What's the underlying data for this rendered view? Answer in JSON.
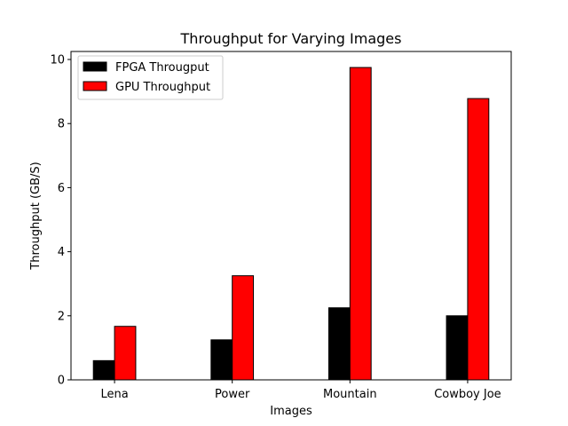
{
  "chart_data": {
    "type": "bar",
    "title": "Throughput for Varying Images",
    "xlabel": "Images",
    "ylabel": "Throughput (GB/S)",
    "categories": [
      "Lena",
      "Power",
      "Mountain",
      "Cowboy Joe"
    ],
    "series": [
      {
        "name": "FPGA Througput",
        "color": "#000000",
        "values": [
          0.6,
          1.25,
          2.25,
          2.0
        ]
      },
      {
        "name": "GPU Throughput",
        "color": "#ff0000",
        "values": [
          1.67,
          3.25,
          9.75,
          8.78
        ]
      }
    ],
    "ylim": [
      0,
      10.25
    ],
    "yticks": [
      0,
      2,
      4,
      6,
      8,
      10
    ],
    "legend": "top-left",
    "grid": false
  }
}
